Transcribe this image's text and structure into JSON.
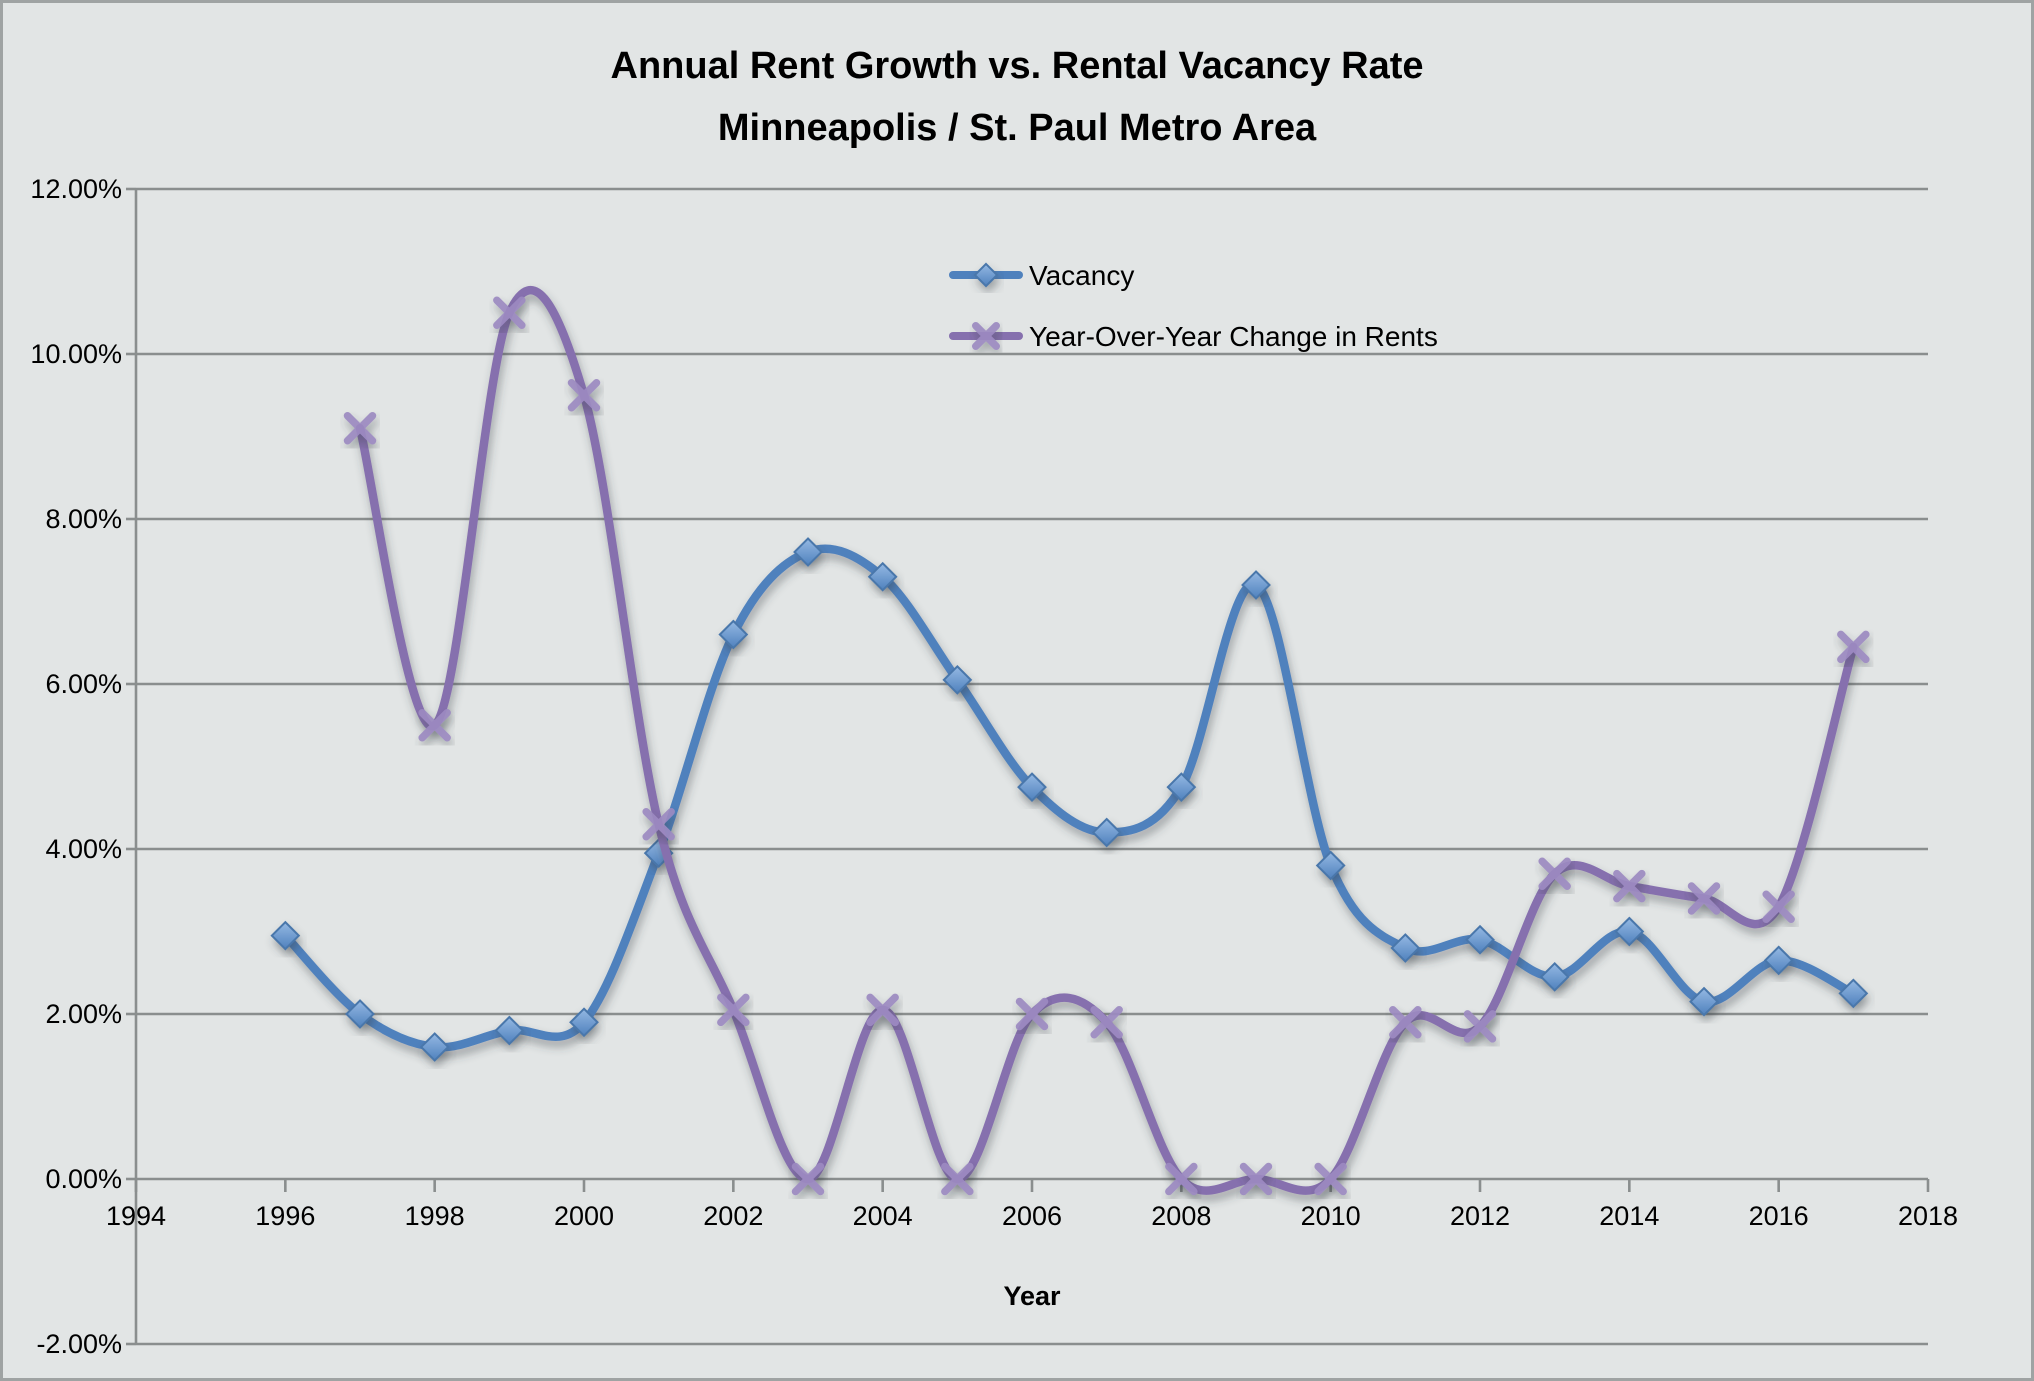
{
  "chart_data": {
    "type": "line",
    "title": "Annual Rent Growth vs. Rental Vacancy Rate",
    "subtitle": "Minneapolis / St. Paul Metro Area",
    "xlabel": "Year",
    "xlim": [
      1994,
      2018
    ],
    "ylim": [
      -2,
      12
    ],
    "grid": true,
    "legend_position": "inside-top-center",
    "x_ticks": [
      1994,
      1996,
      1998,
      2000,
      2002,
      2004,
      2006,
      2008,
      2010,
      2012,
      2014,
      2016,
      2018
    ],
    "y_ticks": [
      {
        "value": 12,
        "label": "12.00%"
      },
      {
        "value": 10,
        "label": "10.00%"
      },
      {
        "value": 8,
        "label": "8.00%"
      },
      {
        "value": 6,
        "label": "6.00%"
      },
      {
        "value": 4,
        "label": "4.00%"
      },
      {
        "value": 2,
        "label": "2.00%"
      },
      {
        "value": 0,
        "label": "0.00%"
      },
      {
        "value": -2,
        "label": "-2.00%"
      }
    ],
    "series": [
      {
        "name": "Vacancy",
        "marker": "diamond",
        "color": "#4f81bd",
        "marker_fill": "#6f9bd1",
        "x": [
          1996,
          1997,
          1998,
          1999,
          2000,
          2001,
          2002,
          2003,
          2004,
          2005,
          2006,
          2007,
          2008,
          2009,
          2010,
          2011,
          2012,
          2013,
          2014,
          2015,
          2016,
          2017
        ],
        "values": [
          2.95,
          2.0,
          1.6,
          1.8,
          1.9,
          3.95,
          6.6,
          7.6,
          7.3,
          6.05,
          4.75,
          4.2,
          4.75,
          7.2,
          3.8,
          2.8,
          2.9,
          2.45,
          3.0,
          2.15,
          2.65,
          2.25
        ]
      },
      {
        "name": "Year-Over-Year Change in Rents",
        "marker": "x",
        "color": "#8670ae",
        "marker_fill": "#9c8ac1",
        "x": [
          1997,
          1998,
          1999,
          2000,
          2001,
          2002,
          2003,
          2004,
          2005,
          2006,
          2007,
          2008,
          2009,
          2010,
          2011,
          2012,
          2013,
          2014,
          2015,
          2016,
          2017
        ],
        "values": [
          9.1,
          5.5,
          10.5,
          9.5,
          4.3,
          2.05,
          0.0,
          2.05,
          0.0,
          2.0,
          1.9,
          0.0,
          0.0,
          0.0,
          1.9,
          1.85,
          3.7,
          3.55,
          3.4,
          3.3,
          6.45
        ]
      }
    ]
  },
  "colors": {
    "background": "#e2e5e5",
    "border": "#9fa3a3",
    "gridline": "#8a8e8e",
    "axis": "#8a8e8e",
    "text": "#000000"
  }
}
